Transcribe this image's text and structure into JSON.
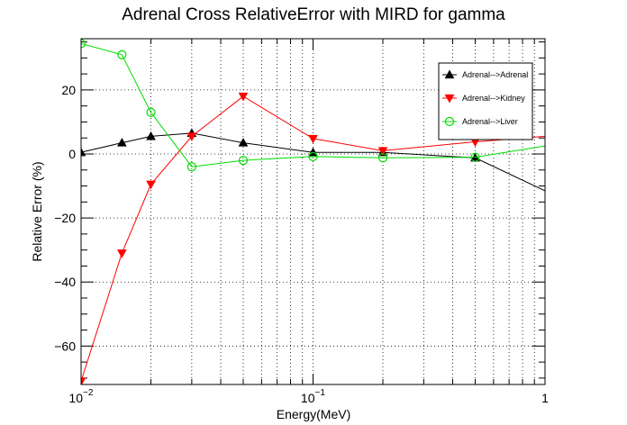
{
  "chart_data": {
    "type": "line",
    "title": "Adrenal Cross RelativeError with MIRD for gamma",
    "xlabel": "Energy(MeV)",
    "ylabel": "Relative Error (%)",
    "x_scale": "log",
    "xlim": [
      0.01,
      1
    ],
    "ylim": [
      -72,
      36
    ],
    "grid": true,
    "legend_position": "top-right",
    "x_tick_labels": [
      {
        "value": 0.01,
        "base": "10",
        "exp": "−2"
      },
      {
        "value": 0.1,
        "base": "10",
        "exp": "−1"
      },
      {
        "value": 1,
        "base": "1",
        "exp": ""
      }
    ],
    "y_ticks": [
      20,
      0,
      -20,
      -40,
      -60
    ],
    "y_tick_labels": [
      "20",
      "0",
      "−20",
      "−40",
      "−60"
    ],
    "series": [
      {
        "name": "Adrenal-->Adrenal",
        "color": "#000000",
        "marker": "triangle-up",
        "x": [
          0.01,
          0.015,
          0.02,
          0.03,
          0.05,
          0.1,
          0.2,
          0.5,
          1
        ],
        "y": [
          0.5,
          3.5,
          5.5,
          6.5,
          3.5,
          0.5,
          0.5,
          -1.2,
          -11.5
        ]
      },
      {
        "name": "Adrenal-->Kidney",
        "color": "#ff0000",
        "marker": "triangle-down",
        "x": [
          0.01,
          0.015,
          0.02,
          0.03,
          0.05,
          0.1,
          0.2,
          0.5,
          1
        ],
        "y": [
          -71,
          -31,
          -9.5,
          5.5,
          18,
          4.8,
          1,
          3.8,
          5.5
        ]
      },
      {
        "name": "Adrenal-->Liver",
        "color": "#00dd00",
        "marker": "circle-open",
        "x": [
          0.01,
          0.015,
          0.02,
          0.03,
          0.05,
          0.1,
          0.2,
          0.5,
          1
        ],
        "y": [
          34.5,
          31,
          13,
          -4,
          -2,
          -0.8,
          -1.2,
          -1,
          2.5
        ]
      }
    ]
  }
}
